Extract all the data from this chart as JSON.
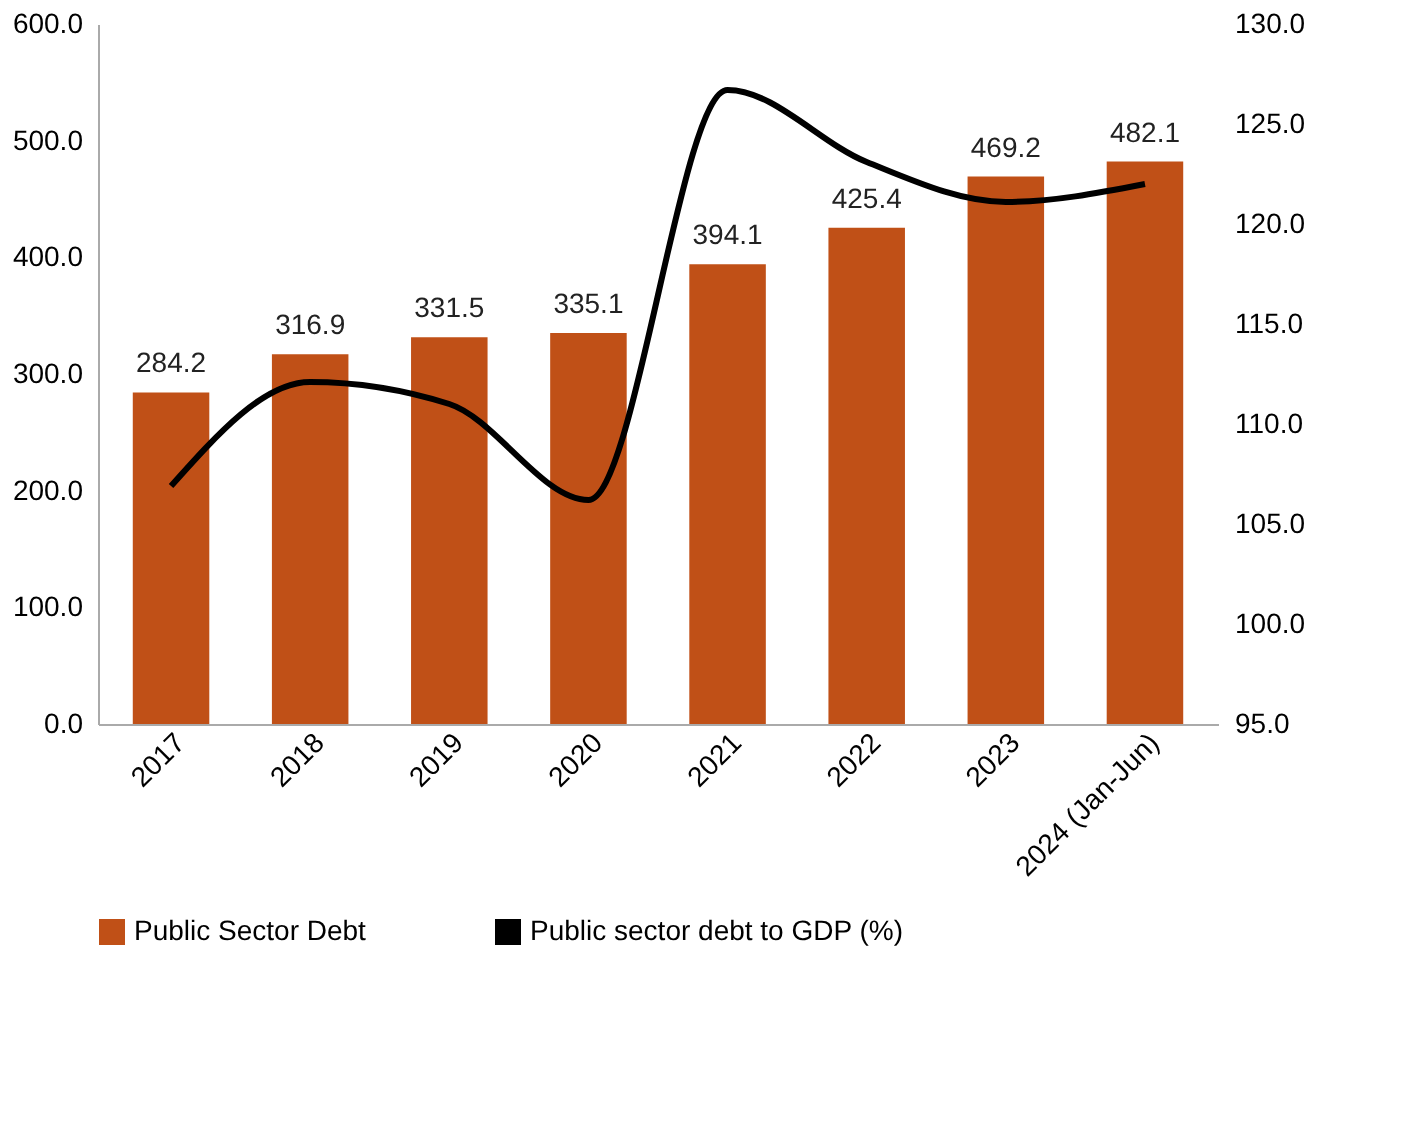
{
  "chart_data": {
    "type": "bar",
    "categories": [
      "2017",
      "2018",
      "2019",
      "2020",
      "2021",
      "2022",
      "2023",
      "2024 (Jan-Jun)"
    ],
    "series": [
      {
        "name": "Public Sector Debt",
        "color": "#c05017",
        "values": [
          284.2,
          316.9,
          331.5,
          335.1,
          394.1,
          425.4,
          469.2,
          482.1
        ],
        "value_labels": [
          "284.2",
          "316.9",
          "331.5",
          "335.1",
          "394.1",
          "425.4",
          "469.2",
          "482.1"
        ]
      },
      {
        "name": "Public sector debt to GDP (%)",
        "type": "line",
        "axis": "y2",
        "color": "#000000",
        "values": [
          106.9,
          112.1,
          111.0,
          106.2,
          126.7,
          123.1,
          121.1,
          122.0
        ]
      }
    ],
    "ylim": [
      0,
      600
    ],
    "yticks": [
      {
        "value": 0,
        "label": "0.0"
      },
      {
        "value": 100,
        "label": "100.0"
      },
      {
        "value": 200,
        "label": "200.0"
      },
      {
        "value": 300,
        "label": "300.0"
      },
      {
        "value": 400,
        "label": "400.0"
      },
      {
        "value": 500,
        "label": "500.0"
      },
      {
        "value": 600,
        "label": "600.0"
      }
    ],
    "y2lim": [
      95,
      130
    ],
    "y2ticks": [
      {
        "value": 95,
        "label": "95.0"
      },
      {
        "value": 100,
        "label": "100.0"
      },
      {
        "value": 105,
        "label": "105.0"
      },
      {
        "value": 110,
        "label": "110.0"
      },
      {
        "value": 115,
        "label": "115.0"
      },
      {
        "value": 120,
        "label": "120.0"
      },
      {
        "value": 125,
        "label": "125.0"
      },
      {
        "value": 130,
        "label": "130.0"
      }
    ],
    "grid": false,
    "legend": "bottom",
    "marker": "none",
    "line_style": "solid"
  }
}
